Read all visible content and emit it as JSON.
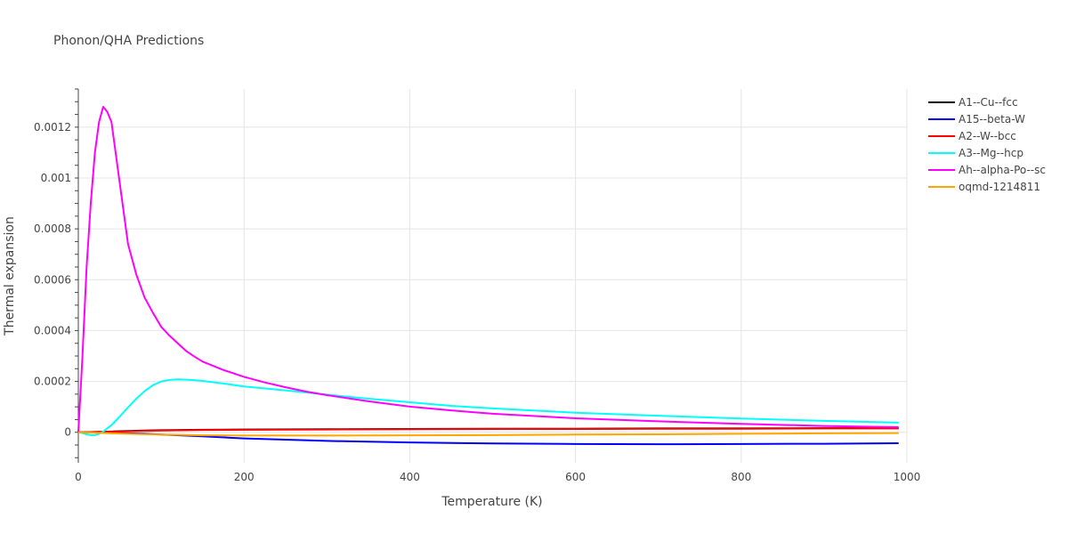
{
  "chart_data": {
    "type": "line",
    "title": "Phonon/QHA Predictions",
    "xlabel": "Temperature (K)",
    "ylabel": "Thermal expansion",
    "xlim": [
      0,
      1000
    ],
    "ylim": [
      -0.00012,
      0.00135
    ],
    "xticks": [
      0,
      200,
      400,
      600,
      800,
      1000
    ],
    "xtick_labels": [
      "0",
      "200",
      "400",
      "600",
      "800",
      "1000"
    ],
    "yticks": [
      0,
      0.0002,
      0.0004,
      0.0006,
      0.0008,
      0.001,
      0.0012
    ],
    "ytick_labels": [
      "0",
      "0.0002",
      "0.0004",
      "0.0006",
      "0.0008",
      "0.001",
      "0.0012"
    ],
    "grid": true,
    "legend_position": "top-right",
    "series": [
      {
        "name": "A1--Cu--fcc",
        "color": "#000000",
        "x": [
          0,
          20,
          40,
          60,
          80,
          100,
          150,
          200,
          300,
          400,
          500,
          600,
          700,
          800,
          900,
          990
        ],
        "y": [
          0,
          1e-06,
          3e-06,
          5e-06,
          7e-06,
          8e-06,
          1e-05,
          1.1e-05,
          1.2e-05,
          1.3e-05,
          1.4e-05,
          1.4e-05,
          1.5e-05,
          1.5e-05,
          1.6e-05,
          1.6e-05
        ]
      },
      {
        "name": "A15--beta-W",
        "color": "#0000ff",
        "x": [
          0,
          20,
          40,
          60,
          80,
          100,
          150,
          200,
          250,
          300,
          400,
          500,
          600,
          700,
          800,
          900,
          990
        ],
        "y": [
          0,
          -5e-07,
          -2e-06,
          -4e-06,
          -6e-06,
          -9e-06,
          -1.6e-05,
          -2.4e-05,
          -2.9e-05,
          -3.4e-05,
          -4e-05,
          -4.4e-05,
          -4.6e-05,
          -4.7e-05,
          -4.6e-05,
          -4.5e-05,
          -4.3e-05
        ]
      },
      {
        "name": "A2--W--bcc",
        "color": "#ff0000",
        "x": [
          0,
          20,
          40,
          60,
          80,
          100,
          150,
          200,
          300,
          400,
          500,
          600,
          700,
          800,
          900,
          990
        ],
        "y": [
          0,
          1e-06,
          2e-06,
          4e-06,
          6e-06,
          7e-06,
          9e-06,
          1e-05,
          1.1e-05,
          1.2e-05,
          1.3e-05,
          1.3e-05,
          1.4e-05,
          1.4e-05,
          1.5e-05,
          1.5e-05
        ]
      },
      {
        "name": "A3--Mg--hcp",
        "color": "#00ffff",
        "x": [
          0,
          5,
          10,
          15,
          20,
          25,
          30,
          40,
          50,
          60,
          70,
          80,
          90,
          100,
          110,
          120,
          130,
          140,
          150,
          175,
          200,
          250,
          300,
          350,
          400,
          450,
          500,
          600,
          700,
          800,
          900,
          990
        ],
        "y": [
          0,
          -3e-06,
          -8e-06,
          -1.1e-05,
          -1.1e-05,
          -6e-06,
          3e-06,
          2.8e-05,
          6.2e-05,
          9.8e-05,
          0.000132,
          0.000162,
          0.000185,
          0.0002,
          0.000206,
          0.000208,
          0.000207,
          0.000205,
          0.000202,
          0.000192,
          0.00018,
          0.000165,
          0.000148,
          0.000132,
          0.000118,
          0.000104,
          9.4e-05,
          7.7e-05,
          6.5e-05,
          5.4e-05,
          4.5e-05,
          3.8e-05
        ]
      },
      {
        "name": "Ah--alpha-Po--sc",
        "color": "#ff00ff",
        "x": [
          0,
          5,
          10,
          15,
          20,
          25,
          30,
          35,
          40,
          50,
          60,
          70,
          80,
          90,
          100,
          110,
          120,
          130,
          140,
          150,
          175,
          200,
          225,
          250,
          275,
          300,
          350,
          400,
          450,
          500,
          600,
          700,
          800,
          900,
          990
        ],
        "y": [
          0,
          0.0003,
          0.00065,
          0.0009,
          0.0011,
          0.00122,
          0.00128,
          0.00126,
          0.00122,
          0.00098,
          0.00074,
          0.00062,
          0.00053,
          0.00047,
          0.000415,
          0.00038,
          0.00035,
          0.00032,
          0.000298,
          0.000278,
          0.000245,
          0.000218,
          0.000196,
          0.000177,
          0.00016,
          0.000146,
          0.000122,
          0.000101,
          8.6e-05,
          7.3e-05,
          5.5e-05,
          4.3e-05,
          3.3e-05,
          2.5e-05,
          2e-05
        ]
      },
      {
        "name": "oqmd-1214811",
        "color": "#ffa500",
        "x": [
          0,
          20,
          40,
          60,
          80,
          100,
          150,
          200,
          300,
          400,
          500,
          600,
          700,
          800,
          900,
          990
        ],
        "y": [
          0,
          -2e-06,
          -4e-06,
          -6e-06,
          -8e-06,
          -9e-06,
          -1.2e-05,
          -1.3e-05,
          -1.3e-05,
          -1.2e-05,
          -1.1e-05,
          -9e-06,
          -8e-06,
          -6e-06,
          -4e-06,
          -3e-06
        ]
      }
    ]
  }
}
